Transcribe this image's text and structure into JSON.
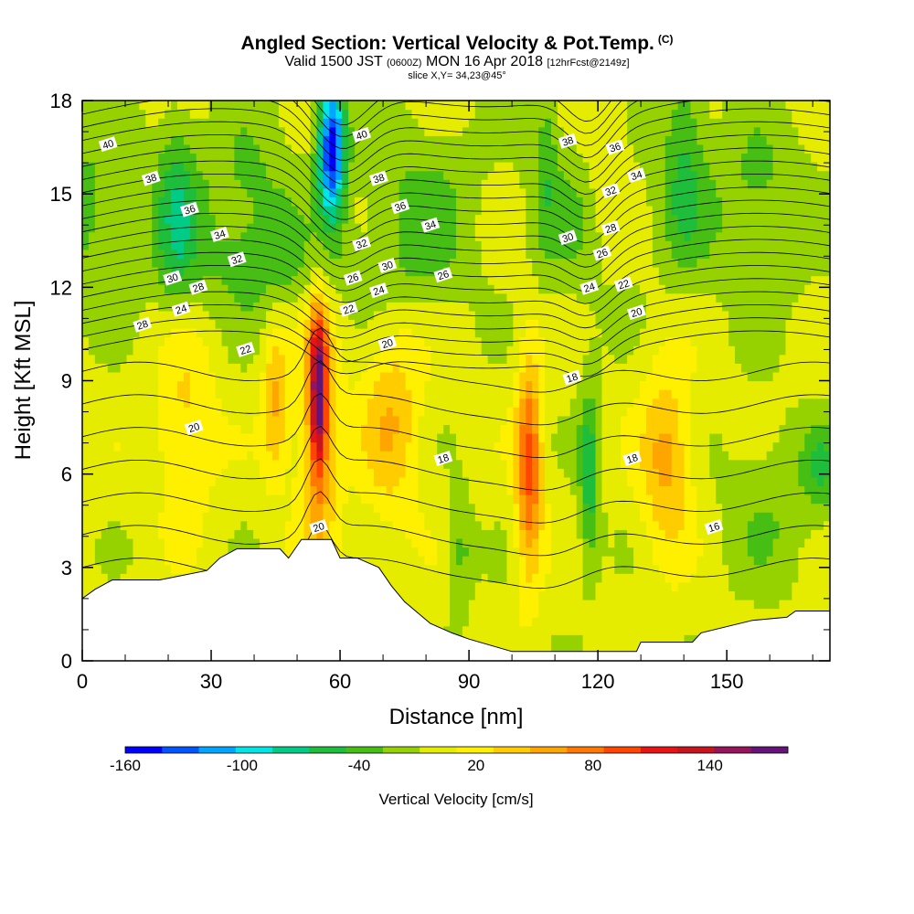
{
  "header": {
    "title": "Angled Section: Vertical Velocity & Pot.Temp.",
    "copyright": "(C)",
    "valid_prefix": "Valid 1500 JST",
    "valid_utc": "(0600Z)",
    "valid_date": "MON 16 Apr 2018",
    "forecast": "[12hrFcst@2149z]",
    "slice": "slice X,Y= 34,23@45°"
  },
  "chart_data": {
    "type": "heatmap",
    "xlabel": "Distance [nm]",
    "ylabel": "Height [Kft MSL]",
    "xlim": [
      0,
      174
    ],
    "ylim": [
      0,
      18
    ],
    "x_ticks": [
      0,
      30,
      60,
      90,
      120,
      150
    ],
    "y_ticks": [
      0,
      3,
      6,
      9,
      12,
      15,
      18
    ],
    "colorbar": {
      "label": "Vertical Velocity [cm/s]",
      "tick_labels": [
        "-160",
        "-100",
        "-40",
        "20",
        "80",
        "140"
      ],
      "tick_values": [
        -160,
        -100,
        -40,
        20,
        80,
        140
      ],
      "min": -160,
      "max": 180,
      "step": 20,
      "colors": [
        "#0000ff",
        "#0055ff",
        "#00a5ff",
        "#00e5e5",
        "#00cc88",
        "#1ebe3c",
        "#46be14",
        "#96d200",
        "#e6ec00",
        "#fff000",
        "#ffcc00",
        "#ffa500",
        "#ff7800",
        "#ff4600",
        "#e61414",
        "#c8141e",
        "#96145a",
        "#641478"
      ]
    },
    "terrain_kft": [
      [
        0,
        2.0
      ],
      [
        3,
        2.3
      ],
      [
        7,
        2.6
      ],
      [
        18,
        2.6
      ],
      [
        29,
        2.9
      ],
      [
        32,
        3.3
      ],
      [
        36,
        3.6
      ],
      [
        46,
        3.6
      ],
      [
        48,
        3.3
      ],
      [
        51,
        3.9
      ],
      [
        58,
        3.9
      ],
      [
        60,
        3.3
      ],
      [
        64,
        3.3
      ],
      [
        69,
        3.0
      ],
      [
        72,
        2.4
      ],
      [
        75,
        1.9
      ],
      [
        81,
        1.2
      ],
      [
        86,
        0.9
      ],
      [
        90,
        0.7
      ],
      [
        100,
        0.3
      ],
      [
        129,
        0.3
      ],
      [
        130,
        0.6
      ],
      [
        142,
        0.6
      ],
      [
        144,
        0.9
      ],
      [
        156,
        1.3
      ],
      [
        164,
        1.4
      ],
      [
        166,
        1.6
      ],
      [
        174,
        1.6
      ]
    ],
    "updrafts": [
      {
        "x": 55,
        "z": 8.7,
        "peak_cm_s": 150
      },
      {
        "x": 104,
        "z": 6.3,
        "peak_cm_s": 100
      },
      {
        "x": 136,
        "z": 6.5,
        "peak_cm_s": 60
      },
      {
        "x": 45,
        "z": 8.4,
        "peak_cm_s": 60
      },
      {
        "x": 72,
        "z": 7.7,
        "peak_cm_s": 50
      },
      {
        "x": 24,
        "z": 7.6,
        "peak_cm_s": 40
      }
    ],
    "downdrafts": [
      {
        "x": 58,
        "z": 16.5,
        "peak_cm_s": -160
      },
      {
        "x": 118,
        "z": 6.0,
        "peak_cm_s": -50
      },
      {
        "x": 172,
        "z": 6.2,
        "peak_cm_s": -40
      },
      {
        "x": 22,
        "z": 14.5,
        "peak_cm_s": -60
      },
      {
        "x": 140,
        "z": 16.0,
        "peak_cm_s": -50
      }
    ],
    "theta_labels": [
      {
        "text": "40",
        "x": 6,
        "z": 16.6
      },
      {
        "text": "38",
        "x": 16,
        "z": 15.5
      },
      {
        "text": "36",
        "x": 25,
        "z": 14.5
      },
      {
        "text": "34",
        "x": 32,
        "z": 13.7
      },
      {
        "text": "32",
        "x": 36,
        "z": 12.9
      },
      {
        "text": "30",
        "x": 21,
        "z": 12.3
      },
      {
        "text": "28",
        "x": 27,
        "z": 12.0
      },
      {
        "text": "24",
        "x": 23,
        "z": 11.3
      },
      {
        "text": "28",
        "x": 14,
        "z": 10.8
      },
      {
        "text": "22",
        "x": 38,
        "z": 10.0
      },
      {
        "text": "20",
        "x": 26,
        "z": 7.5
      },
      {
        "text": "40",
        "x": 65,
        "z": 16.9
      },
      {
        "text": "38",
        "x": 69,
        "z": 15.5
      },
      {
        "text": "36",
        "x": 74,
        "z": 14.6
      },
      {
        "text": "34",
        "x": 81,
        "z": 14.0
      },
      {
        "text": "32",
        "x": 65,
        "z": 13.4
      },
      {
        "text": "30",
        "x": 71,
        "z": 12.7
      },
      {
        "text": "26",
        "x": 63,
        "z": 12.3
      },
      {
        "text": "24",
        "x": 69,
        "z": 11.9
      },
      {
        "text": "26",
        "x": 84,
        "z": 12.4
      },
      {
        "text": "22",
        "x": 62,
        "z": 11.3
      },
      {
        "text": "20",
        "x": 71,
        "z": 10.2
      },
      {
        "text": "18",
        "x": 84,
        "z": 6.5
      },
      {
        "text": "20",
        "x": 55,
        "z": 4.3
      },
      {
        "text": "38",
        "x": 113,
        "z": 16.7
      },
      {
        "text": "36",
        "x": 124,
        "z": 16.5
      },
      {
        "text": "34",
        "x": 129,
        "z": 15.6
      },
      {
        "text": "32",
        "x": 123,
        "z": 15.1
      },
      {
        "text": "30",
        "x": 113,
        "z": 13.6
      },
      {
        "text": "28",
        "x": 123,
        "z": 13.9
      },
      {
        "text": "26",
        "x": 121,
        "z": 13.1
      },
      {
        "text": "24",
        "x": 118,
        "z": 12.0
      },
      {
        "text": "22",
        "x": 126,
        "z": 12.1
      },
      {
        "text": "20",
        "x": 129,
        "z": 11.2
      },
      {
        "text": "18",
        "x": 114,
        "z": 9.1
      },
      {
        "text": "18",
        "x": 128,
        "z": 6.5
      },
      {
        "text": "16",
        "x": 147,
        "z": 4.3
      }
    ]
  }
}
